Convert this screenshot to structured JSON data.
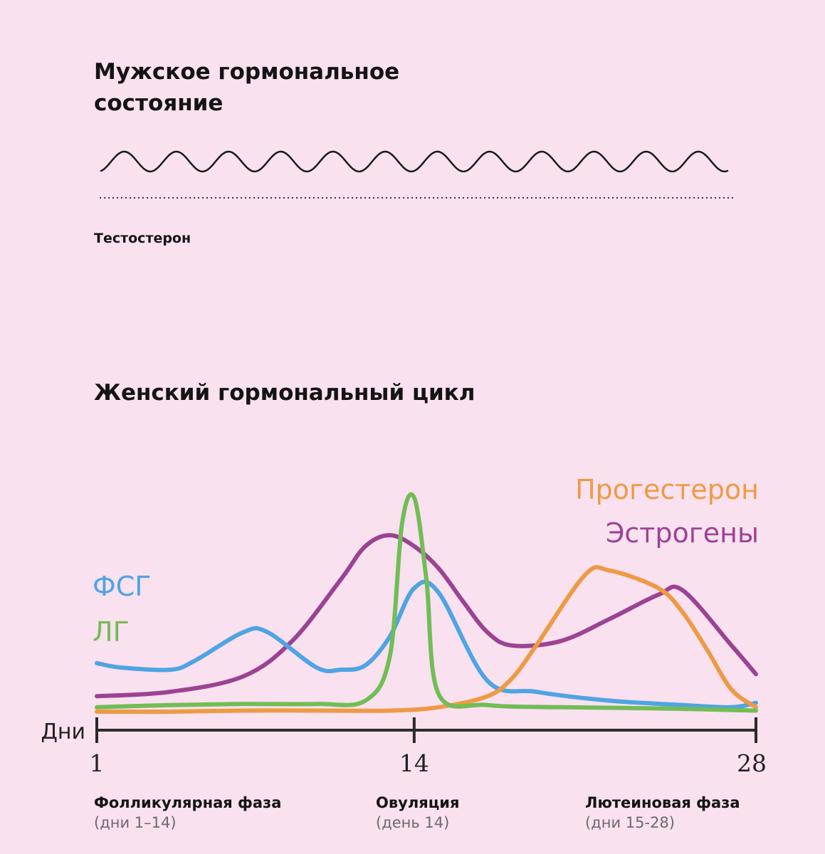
{
  "male": {
    "title": "Мужское гормональное состояние",
    "series_label": "Тестостерон"
  },
  "female": {
    "title": "Женский гормональный цикл"
  },
  "chart_data": [
    {
      "type": "line",
      "title": "Мужское гормональное состояние",
      "series": [
        {
          "name": "Тестостерон",
          "color": "#1a1a1a",
          "pattern": "steady oscillation",
          "cycles": 12
        }
      ],
      "grid": false
    },
    {
      "type": "line",
      "title": "Женский гормональный цикл",
      "xlabel": "Дни",
      "ylabel": "",
      "xlim": [
        1,
        28
      ],
      "ylim": [
        0,
        100
      ],
      "x_ticks": [
        1,
        14,
        28
      ],
      "legend_placement": "left (ФСГ, ЛГ) and top-right (Прогестерон, Эстрогены)",
      "grid": false,
      "series": [
        {
          "name": "ФСГ",
          "color": "#4fa4e2",
          "x": [
            1,
            2,
            4,
            5,
            7,
            8,
            10,
            11,
            12,
            13,
            14,
            15,
            17,
            19,
            22,
            25,
            27,
            28
          ],
          "y": [
            22,
            20,
            19,
            23,
            36,
            36,
            20,
            19,
            21,
            34,
            56,
            54,
            14,
            9,
            5,
            3,
            2,
            4
          ]
        },
        {
          "name": "ЛГ",
          "color": "#72bd56",
          "x": [
            1,
            4,
            7,
            10,
            12,
            13,
            13.5,
            14,
            14.5,
            15,
            17,
            20,
            24,
            28
          ],
          "y": [
            2,
            3,
            3.5,
            3.5,
            5,
            25,
            85,
            97,
            60,
            8,
            3,
            2,
            1.5,
            0.5
          ]
        },
        {
          "name": "Эстрогены",
          "color": "#9b4393",
          "x": [
            1,
            4,
            7,
            9,
            11,
            12,
            13,
            14,
            15,
            16,
            17,
            18,
            20,
            22,
            24,
            25,
            27,
            28
          ],
          "y": [
            7,
            9,
            16,
            32,
            60,
            75,
            80,
            75,
            65,
            50,
            36,
            30,
            32,
            42,
            53,
            55,
            30,
            17
          ]
        },
        {
          "name": "Прогестерон",
          "color": "#ee9a45",
          "x": [
            1,
            4,
            7,
            10,
            13,
            15,
            17,
            18,
            19,
            21,
            22,
            24,
            25,
            26,
            27,
            28
          ],
          "y": [
            0,
            0,
            0.5,
            0.5,
            0.5,
            2,
            7,
            15,
            30,
            62,
            64,
            56,
            45,
            28,
            10,
            2
          ]
        }
      ]
    }
  ],
  "phases": [
    {
      "name": "Фолликулярная фаза",
      "days": "(дни 1–14)"
    },
    {
      "name": "Овуляция",
      "days": "(день 14)"
    },
    {
      "name": "Лютеиновая фаза",
      "days": "(дни 15-28)"
    }
  ]
}
